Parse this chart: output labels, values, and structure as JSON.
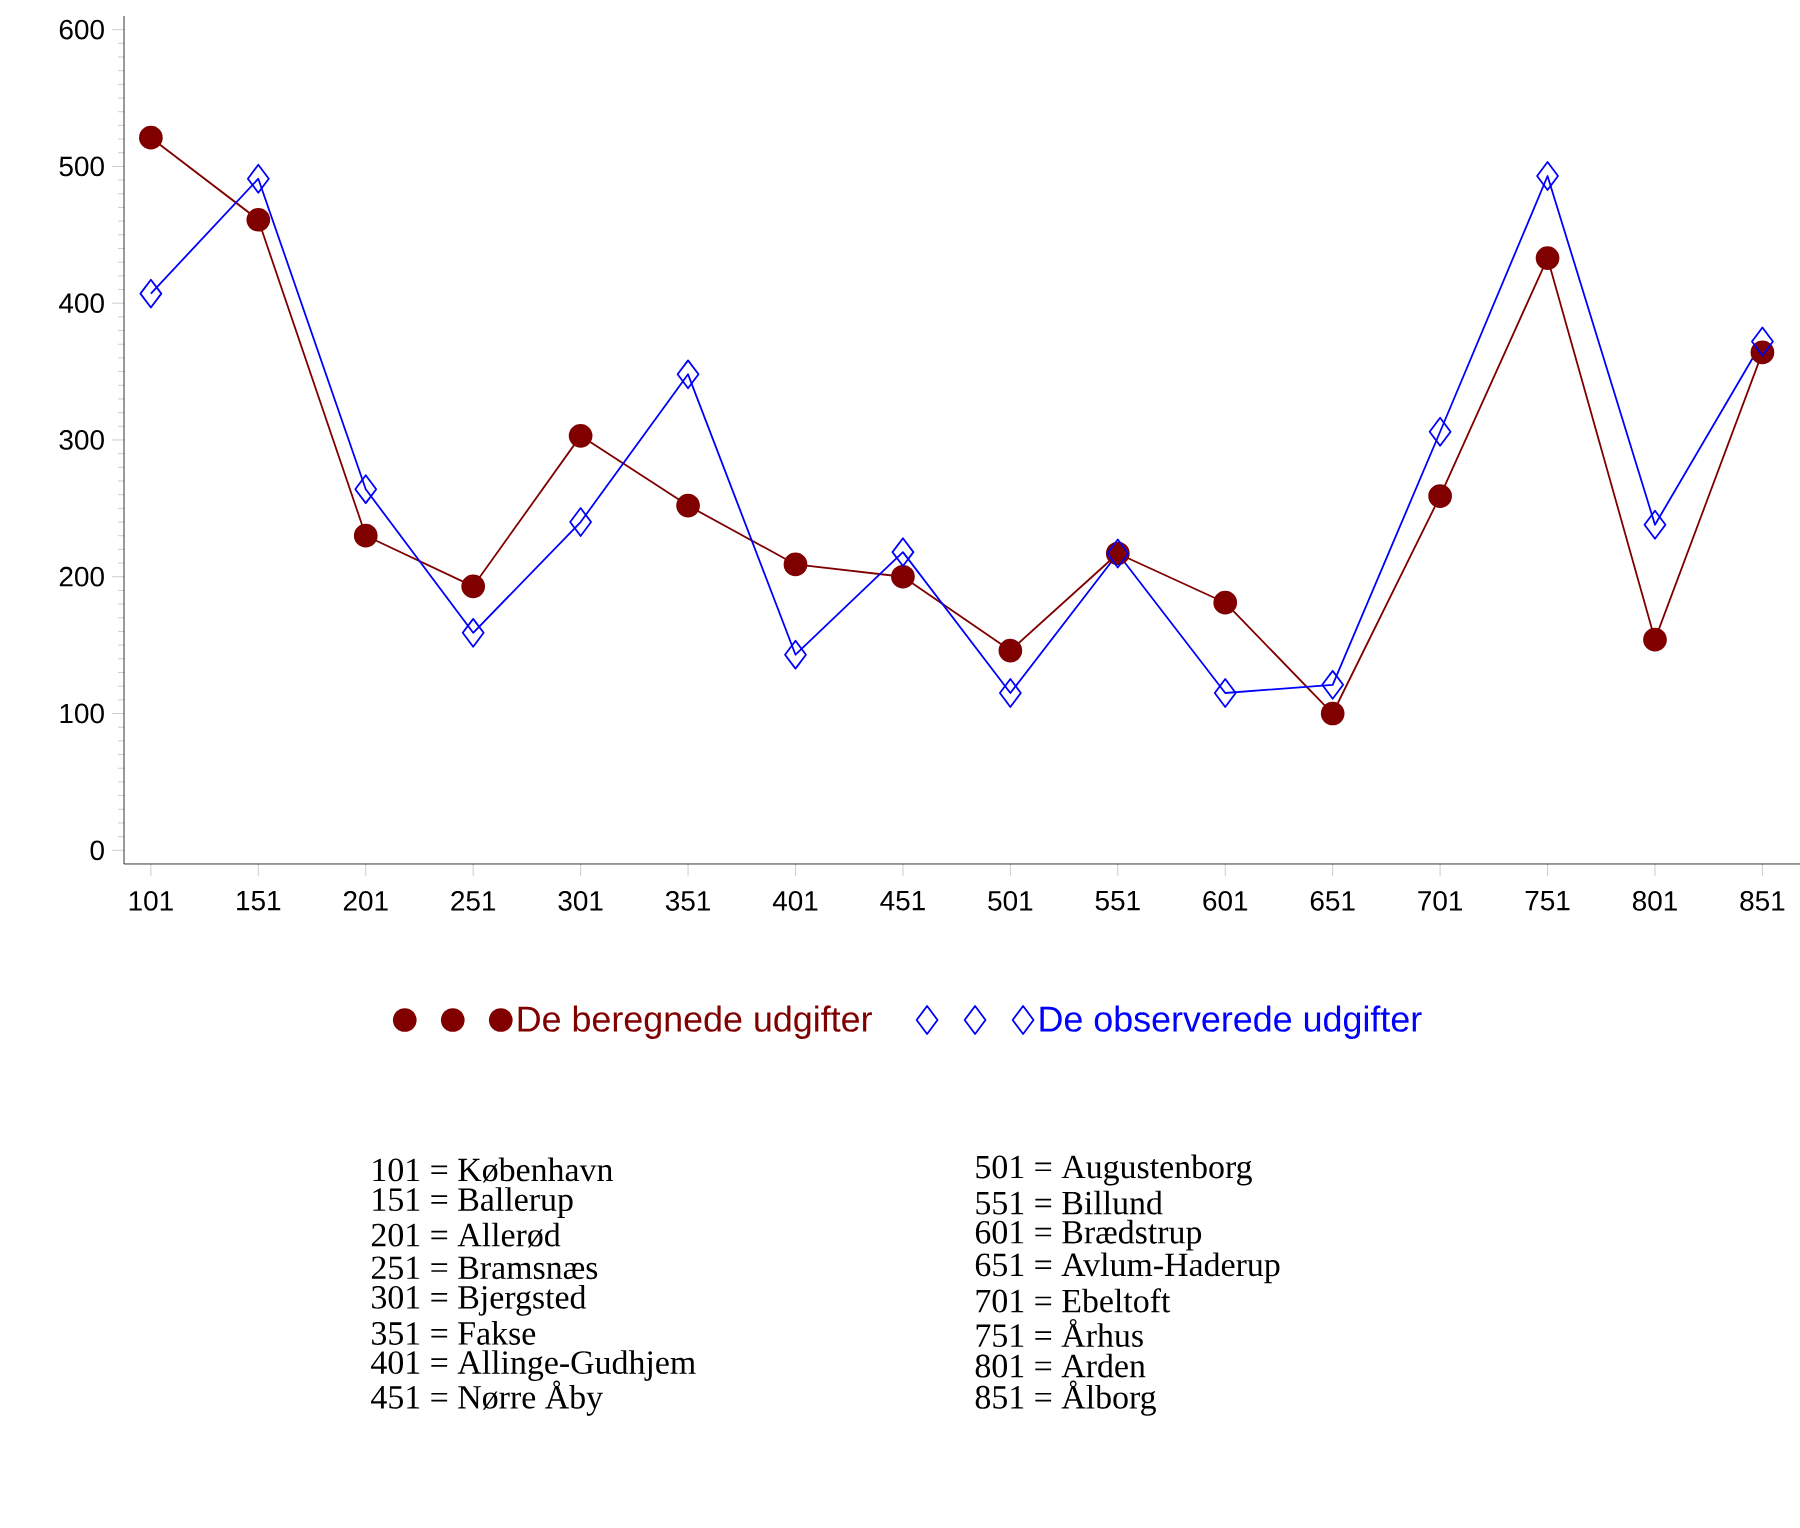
{
  "chart_data": {
    "type": "line",
    "categories": [
      "101",
      "151",
      "201",
      "251",
      "301",
      "351",
      "401",
      "451",
      "501",
      "551",
      "601",
      "651",
      "701",
      "751",
      "801",
      "851"
    ],
    "series": [
      {
        "name": "De beregnede udgifter",
        "color": "#800000",
        "marker": "circle",
        "values": [
          521,
          461,
          230,
          193,
          303,
          252,
          209,
          200,
          146,
          217,
          181,
          100,
          259,
          433,
          154,
          364
        ]
      },
      {
        "name": "De observerede udgifter",
        "color": "#0000ff",
        "marker": "diamond",
        "values": [
          407,
          491,
          264,
          159,
          240,
          348,
          143,
          218,
          115,
          217,
          115,
          121,
          306,
          493,
          238,
          372
        ]
      }
    ],
    "ylim": [
      -10,
      610
    ],
    "yticks": [
      0,
      100,
      200,
      300,
      400,
      500,
      600
    ],
    "legend": "bottom",
    "line_style": "solid",
    "annotations": [
      "101 = København",
      "151 = Ballerup",
      "201 = Allerød",
      "251 = Bramsnæs",
      "301 = Bjergsted",
      "351 = Fakse",
      "401 = Allinge-Gudhjem",
      "451 = Nørre Åby",
      "501 = Augustenborg",
      "551 = Billund",
      "601 = Brædstrup",
      "651 = Avlum-Haderup",
      "701 = Ebeltoft",
      "751 = Århus",
      "801 = Arden",
      "851 = Ålborg"
    ]
  }
}
